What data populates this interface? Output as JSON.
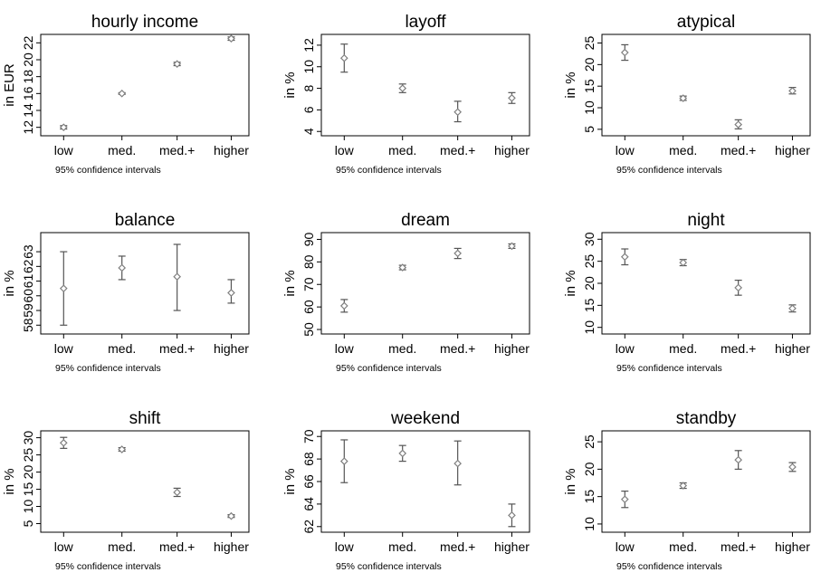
{
  "note_text": "95% confidence intervals",
  "categories": [
    "low",
    "med.",
    "med.+",
    "higher"
  ],
  "chart_data": [
    {
      "type": "errorbar",
      "title": "hourly income",
      "ylabel": "in EUR",
      "ylim": [
        11,
        23
      ],
      "yticks": [
        12,
        14,
        16,
        18,
        20,
        22
      ],
      "ytick_labels": [
        "12",
        "14",
        "16",
        "18",
        "20",
        "22"
      ],
      "ytick_rotated": true,
      "categories": [
        "low",
        "med.",
        "med.+",
        "higher"
      ],
      "series": [
        {
          "mean": [
            12.0,
            16.0,
            19.5,
            22.5
          ],
          "lower": [
            11.8,
            15.9,
            19.3,
            22.3
          ],
          "upper": [
            12.2,
            16.1,
            19.7,
            22.7
          ]
        }
      ]
    },
    {
      "type": "errorbar",
      "title": "layoff",
      "ylabel": "in %",
      "ylim": [
        3.6,
        13
      ],
      "yticks": [
        4,
        6,
        8,
        10,
        12
      ],
      "ytick_labels": [
        "4",
        "6",
        "8",
        "10",
        "12"
      ],
      "ytick_rotated": true,
      "categories": [
        "low",
        "med.",
        "med.+",
        "higher"
      ],
      "series": [
        {
          "mean": [
            10.8,
            8.0,
            5.8,
            7.1
          ],
          "lower": [
            9.5,
            7.6,
            4.9,
            6.6
          ],
          "upper": [
            12.1,
            8.4,
            6.8,
            7.6
          ]
        }
      ]
    },
    {
      "type": "errorbar",
      "title": "atypical",
      "ylabel": "in %",
      "ylim": [
        3.5,
        27
      ],
      "yticks": [
        5,
        10,
        15,
        20,
        25
      ],
      "ytick_labels": [
        "5",
        "10",
        "15",
        "20",
        "25"
      ],
      "ytick_rotated": true,
      "categories": [
        "low",
        "med.",
        "med.+",
        "higher"
      ],
      "series": [
        {
          "mean": [
            22.8,
            12.2,
            6.1,
            13.9
          ],
          "lower": [
            21.0,
            11.7,
            5.1,
            13.2
          ],
          "upper": [
            24.6,
            12.7,
            7.2,
            14.7
          ]
        }
      ]
    },
    {
      "type": "errorbar",
      "title": "balance",
      "ylabel": "in %",
      "ylim": [
        57.4,
        64.3
      ],
      "yticks": [
        58,
        59,
        60,
        61,
        62,
        63
      ],
      "ytick_labels": [
        "58",
        "59",
        "60",
        "61",
        "62",
        "63"
      ],
      "ytick_rotated": true,
      "categories": [
        "low",
        "med.",
        "med.+",
        "higher"
      ],
      "series": [
        {
          "mean": [
            60.5,
            61.9,
            61.3,
            60.2
          ],
          "lower": [
            58.0,
            61.1,
            59.0,
            59.5
          ],
          "upper": [
            63.0,
            62.7,
            63.5,
            61.1
          ]
        }
      ]
    },
    {
      "type": "errorbar",
      "title": "dream",
      "ylabel": "in %",
      "ylim": [
        48,
        93
      ],
      "yticks": [
        50,
        60,
        70,
        80,
        90
      ],
      "ytick_labels": [
        "50",
        "60",
        "70",
        "80",
        "90"
      ],
      "ytick_rotated": true,
      "categories": [
        "low",
        "med.",
        "med.+",
        "higher"
      ],
      "series": [
        {
          "mean": [
            60.5,
            77.5,
            83.8,
            87.0
          ],
          "lower": [
            57.7,
            76.5,
            81.5,
            86.0
          ],
          "upper": [
            63.3,
            78.5,
            86.0,
            88.0
          ]
        }
      ]
    },
    {
      "type": "errorbar",
      "title": "night",
      "ylabel": "in %",
      "ylim": [
        8.5,
        31.5
      ],
      "yticks": [
        10,
        15,
        20,
        25,
        30
      ],
      "ytick_labels": [
        "10",
        "15",
        "20",
        "25",
        "30"
      ],
      "ytick_rotated": true,
      "categories": [
        "low",
        "med.",
        "med.+",
        "higher"
      ],
      "series": [
        {
          "mean": [
            26.0,
            24.7,
            19.0,
            14.3
          ],
          "lower": [
            24.2,
            24.0,
            17.3,
            13.5
          ],
          "upper": [
            27.8,
            25.4,
            20.7,
            15.1
          ]
        }
      ]
    },
    {
      "type": "errorbar",
      "title": "shift",
      "ylabel": "in %",
      "ylim": [
        2.5,
        32
      ],
      "yticks": [
        5,
        10,
        15,
        20,
        25,
        30
      ],
      "ytick_labels": [
        "5",
        "10",
        "15",
        "20",
        "25",
        "30"
      ],
      "ytick_rotated": true,
      "categories": [
        "low",
        "med.",
        "med.+",
        "higher"
      ],
      "series": [
        {
          "mean": [
            28.5,
            26.6,
            14.1,
            7.2
          ],
          "lower": [
            26.9,
            26.1,
            12.9,
            6.8
          ],
          "upper": [
            30.1,
            27.1,
            15.3,
            7.6
          ]
        }
      ]
    },
    {
      "type": "errorbar",
      "title": "weekend",
      "ylabel": "in %",
      "ylim": [
        61.5,
        70.5
      ],
      "yticks": [
        62,
        64,
        66,
        68,
        70
      ],
      "ytick_labels": [
        "62",
        "64",
        "66",
        "68",
        "70"
      ],
      "ytick_rotated": true,
      "categories": [
        "low",
        "med.",
        "med.+",
        "higher"
      ],
      "series": [
        {
          "mean": [
            67.8,
            68.5,
            67.6,
            63.0
          ],
          "lower": [
            65.9,
            67.8,
            65.7,
            62.0
          ],
          "upper": [
            69.7,
            69.2,
            69.6,
            64.0
          ]
        }
      ]
    },
    {
      "type": "errorbar",
      "title": "standby",
      "ylabel": "in %",
      "ylim": [
        8.5,
        27
      ],
      "yticks": [
        10,
        15,
        20,
        25
      ],
      "ytick_labels": [
        "10",
        "15",
        "20",
        "25"
      ],
      "ytick_rotated": true,
      "categories": [
        "low",
        "med.",
        "med.+",
        "higher"
      ],
      "series": [
        {
          "mean": [
            14.5,
            17.0,
            21.7,
            20.4
          ],
          "lower": [
            13.0,
            16.5,
            20.0,
            19.6
          ],
          "upper": [
            16.0,
            17.5,
            23.4,
            21.2
          ]
        }
      ]
    }
  ]
}
